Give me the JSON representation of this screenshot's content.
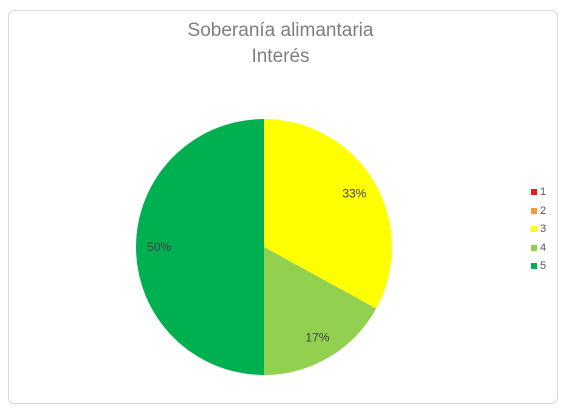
{
  "chart_data": {
    "type": "pie",
    "title": "Soberanía alimantaria",
    "subtitle": "Interés",
    "categories": [
      "1",
      "2",
      "3",
      "4",
      "5"
    ],
    "values": [
      0,
      0,
      33,
      17,
      50
    ],
    "labels": [
      "",
      "",
      "33%",
      "17%",
      "50%"
    ],
    "colors": [
      "#e31a1c",
      "#f39c3d",
      "#ffff00",
      "#92d050",
      "#00b050"
    ],
    "legend": "right"
  }
}
